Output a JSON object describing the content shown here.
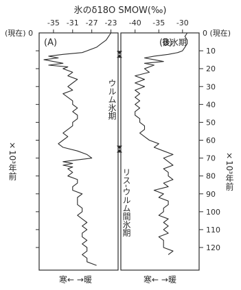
{
  "chart_data": [
    {
      "type": "line",
      "panel_label": "(A)",
      "xlabel": "氷のδ18O SMOW(‰)",
      "x_ticks": [
        "-35",
        "-31",
        "-27",
        "-23"
      ],
      "x_tick_values": [
        -35,
        -31,
        -27,
        -23
      ],
      "xlim": [
        -38,
        -21.5
      ],
      "ylim": [
        0,
        130
      ],
      "left_tick_top_label": "(現在) 0",
      "bottom_label": "寒← →暖",
      "series": [
        {
          "y": [
            0,
            2,
            4,
            6,
            8,
            10,
            11,
            12,
            13,
            14,
            15,
            16,
            17,
            18,
            19,
            20,
            22,
            24,
            26,
            28,
            30,
            32,
            34,
            36,
            38,
            40,
            42,
            44,
            46,
            48,
            50,
            52,
            54,
            56,
            58,
            60,
            62,
            64,
            66,
            68,
            70,
            71,
            72,
            73,
            74,
            75,
            76,
            78,
            80,
            82,
            84,
            86,
            88,
            90,
            92,
            94,
            96,
            98,
            100,
            102,
            104,
            106,
            108,
            110,
            112,
            114,
            116,
            118,
            120,
            122,
            124,
            126,
            128,
            130
          ],
          "x": [
            -23,
            -23.5,
            -24,
            -25,
            -26,
            -28,
            -29,
            -33,
            -36,
            -34,
            -37,
            -35,
            -33,
            -36,
            -32,
            -33,
            -31,
            -32,
            -30,
            -31,
            -32,
            -31,
            -33,
            -32,
            -31,
            -31,
            -30,
            -31,
            -30,
            -30,
            -31,
            -31,
            -32,
            -33,
            -32,
            -33,
            -34,
            -33,
            -30,
            -28,
            -27,
            -30,
            -33,
            -31,
            -33,
            -31,
            -32,
            -31,
            -32,
            -30,
            -30,
            -31,
            -31,
            -29,
            -30,
            -30,
            -30,
            -29,
            -29,
            -30,
            -29,
            -28,
            -29,
            -28,
            -29,
            -29,
            -28,
            -29,
            -28,
            -28,
            -29,
            -28,
            -28,
            -26
          ]
        }
      ]
    },
    {
      "type": "line",
      "panel_label": "(B)",
      "x_ticks": [
        "-40",
        "-35",
        "-30"
      ],
      "x_tick_values": [
        -40,
        -35,
        -30
      ],
      "xlim": [
        -43,
        -26.5
      ],
      "ylim": [
        0,
        125
      ],
      "right_tick_top_label": "0 (現在)",
      "y_ticks": [
        10,
        20,
        30,
        40,
        50,
        60,
        70,
        80,
        90,
        100,
        110,
        120
      ],
      "bottom_label": "寒← →暖",
      "series": [
        {
          "y": [
            0,
            2,
            4,
            6,
            8,
            10,
            11,
            12,
            13,
            14,
            15,
            16,
            17,
            18,
            20,
            22,
            24,
            26,
            28,
            30,
            32,
            34,
            36,
            38,
            40,
            42,
            44,
            46,
            48,
            50,
            52,
            54,
            56,
            58,
            60,
            62,
            64,
            66,
            68,
            70,
            72,
            74,
            76,
            78,
            80,
            82,
            84,
            86,
            88,
            90,
            92,
            94,
            96,
            98,
            100,
            102,
            104,
            106,
            108,
            110,
            112,
            114,
            116,
            118,
            120,
            122,
            124
          ],
          "x": [
            -29,
            -29.5,
            -29,
            -29,
            -29.5,
            -30,
            -31,
            -33,
            -36,
            -38,
            -36,
            -34,
            -38,
            -36,
            -38,
            -37,
            -40,
            -38,
            -40,
            -38,
            -40,
            -39,
            -40,
            -39,
            -40,
            -39,
            -40,
            -40,
            -39,
            -39,
            -38,
            -38,
            -39,
            -38,
            -37,
            -35,
            -36,
            -34,
            -32,
            -34,
            -33,
            -32,
            -34,
            -33,
            -33,
            -32,
            -34,
            -33,
            -36,
            -34,
            -35,
            -33,
            -33,
            -34,
            -34,
            -35,
            -33,
            -34,
            -33,
            -34,
            -33,
            -35,
            -34,
            -34,
            -34,
            -32,
            -33
          ]
        }
      ]
    }
  ],
  "shared": {
    "y_axis_unit_label": "×10³年前",
    "period_labels": [
      {
        "text": "後氷期",
        "y_from": 0,
        "y_to": 12
      },
      {
        "text": "ウルム氷期",
        "y_from": 12,
        "y_to": 65
      },
      {
        "text": "リス-ウルム間氷期",
        "y_from": 65,
        "y_to": 130
      }
    ],
    "boundary_markers": [
      12,
      65
    ]
  },
  "colors": {
    "ink": "#2a2a2a",
    "paper": "#ffffff"
  }
}
